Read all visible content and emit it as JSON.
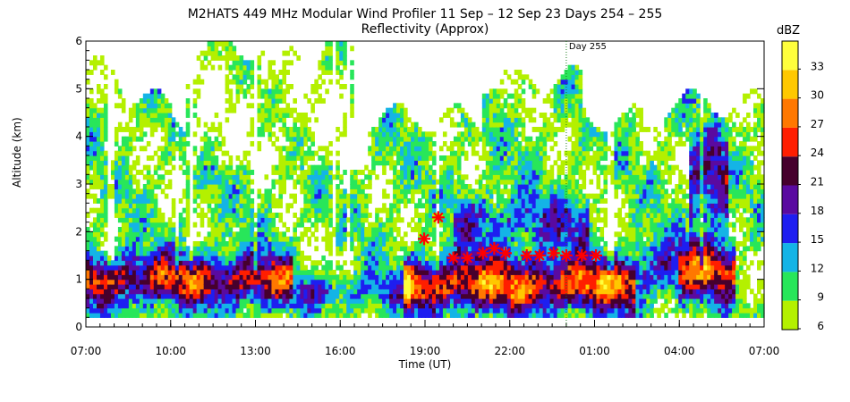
{
  "chart_data": {
    "type": "heatmap",
    "title": "M2HATS 449 MHz Modular Wind Profiler   11 Sep – 12 Sep 23 Days 254 – 255",
    "subtitle": "Reflectivity (Approx)",
    "xlabel": "Time (UT)",
    "ylabel": "Altitude (km)",
    "x_tick_labels": [
      "07:00",
      "10:00",
      "13:00",
      "16:00",
      "19:00",
      "22:00",
      "01:00",
      "04:00",
      "07:00"
    ],
    "x_range_hours": [
      0,
      24
    ],
    "y_ticks": [
      "0",
      "1",
      "2",
      "3",
      "4",
      "5",
      "6"
    ],
    "ylim": [
      0,
      6
    ],
    "day_marker": {
      "label": "Day 255",
      "hour": 17.0
    },
    "colorbar": {
      "unit": "dBZ",
      "tick_labels": [
        "6",
        "9",
        "12",
        "15",
        "18",
        "21",
        "24",
        "27",
        "30",
        "33"
      ],
      "levels": [
        {
          "min": 6,
          "color": "#b4f000"
        },
        {
          "min": 9,
          "color": "#28e65a"
        },
        {
          "min": 12,
          "color": "#14b4e6"
        },
        {
          "min": 15,
          "color": "#1e1ef0"
        },
        {
          "min": 18,
          "color": "#5a0aa0"
        },
        {
          "min": 21,
          "color": "#46002d"
        },
        {
          "min": 24,
          "color": "#ff1e00"
        },
        {
          "min": 27,
          "color": "#ff7800"
        },
        {
          "min": 30,
          "color": "#ffc800"
        },
        {
          "min": 33,
          "color": "#ffff3c"
        }
      ]
    },
    "markers": {
      "symbol": "*",
      "color": "#ff0000",
      "points": [
        {
          "x": 11.97,
          "y": 1.85
        },
        {
          "x": 12.47,
          "y": 2.3
        },
        {
          "x": 13.0,
          "y": 1.45
        },
        {
          "x": 13.5,
          "y": 1.45
        },
        {
          "x": 14.05,
          "y": 1.55
        },
        {
          "x": 14.45,
          "y": 1.65
        },
        {
          "x": 14.85,
          "y": 1.55
        },
        {
          "x": 15.6,
          "y": 1.5
        },
        {
          "x": 16.05,
          "y": 1.5
        },
        {
          "x": 16.55,
          "y": 1.55
        },
        {
          "x": 17.0,
          "y": 1.5
        },
        {
          "x": 17.55,
          "y": 1.5
        },
        {
          "x": 18.05,
          "y": 1.5
        }
      ]
    }
  }
}
